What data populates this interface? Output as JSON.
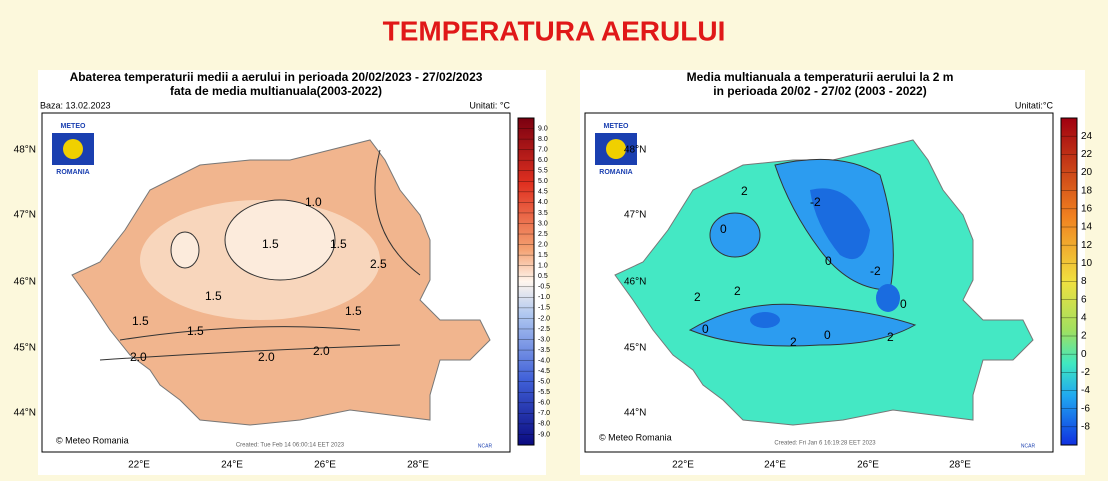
{
  "header": {
    "title": "TEMPERATURA AERULUI"
  },
  "maps": [
    {
      "title_lines": [
        "Abaterea temperaturii medii a aerului in perioada 20/02/2023 - 27/02/2023",
        "fata de media multianuala(2003-2022)"
      ],
      "base": "Baza: 13.02.2023",
      "units": "Unitati: °C",
      "logo": [
        "METEO",
        "ROMANIA"
      ],
      "lat_labels": [
        "48°N",
        "47°N",
        "46°N",
        "45°N",
        "44°N"
      ],
      "lon_labels": [
        "22°E",
        "24°E",
        "26°E",
        "28°E"
      ],
      "colorbar_labels": [
        "9.0",
        "8.0",
        "7.0",
        "6.0",
        "5.5",
        "5.0",
        "4.5",
        "4.0",
        "3.5",
        "3.0",
        "2.5",
        "2.0",
        "1.5",
        "1.0",
        "0.5",
        "-0.5",
        "-1.0",
        "-1.5",
        "-2.0",
        "-2.5",
        "-3.0",
        "-3.5",
        "-4.0",
        "-4.5",
        "-5.0",
        "-5.5",
        "-6.0",
        "-7.0",
        "-8.0",
        "-9.0"
      ],
      "contour_labels": [
        "1.0",
        "1.5",
        "1.5",
        "1.5",
        "2.5",
        "1.5",
        "1.5",
        "1.5",
        "2.0",
        "2.0",
        "2.0"
      ],
      "credit": "© Meteo Romania",
      "created": "Created: Tue Feb 14 06:00:14 EET 2023",
      "ncar": "NCAR"
    },
    {
      "title_lines": [
        "Media multianuala a temperaturii aerului la 2 m",
        "in perioada 20/02 - 27/02 (2003 - 2022)"
      ],
      "units": "Unitati:°C",
      "logo": [
        "METEO",
        "ROMANIA"
      ],
      "lat_labels": [
        "48°N",
        "47°N",
        "46°N",
        "45°N",
        "44°N"
      ],
      "lon_labels": [
        "22°E",
        "24°E",
        "26°E",
        "28°E"
      ],
      "colorbar_labels": [
        "24",
        "22",
        "20",
        "18",
        "16",
        "14",
        "12",
        "10",
        "8",
        "6",
        "4",
        "2",
        "0",
        "-2",
        "-4",
        "-6",
        "-8"
      ],
      "contour_labels": [
        "2",
        "-2",
        "0",
        "0",
        "-2",
        "2",
        "2",
        "0",
        "0",
        "2",
        "0",
        "2"
      ],
      "credit": "© Meteo Romania",
      "created": "Created: Fri Jan 6 16:19:28 EET 2023",
      "ncar": "NCAR"
    }
  ]
}
